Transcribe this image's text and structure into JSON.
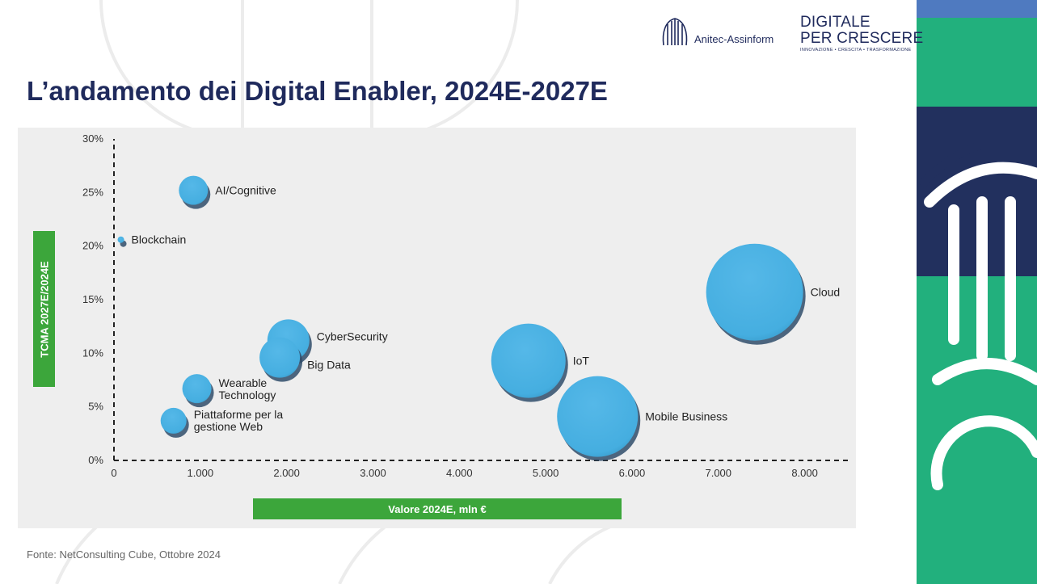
{
  "header": {
    "anitec_name": "Anitec-Assinform",
    "dpc_line1": "DIGITALE",
    "dpc_line2": "PER CRESCERE",
    "dpc_tagline": "INNOVAZIONE • CRESCITA • TRASFORMAZIONE"
  },
  "slide_title": "L’andamento dei Digital Enabler, 2024E-2027E",
  "source_note": "Fonte: NetConsulting Cube, Ottobre 2024",
  "colors": {
    "navy": "#1f2a5c",
    "green": "#3ca63b",
    "bubble": "#45aee0",
    "bubble_shadow": "#2f4c6a",
    "brand_green": "#22b07d",
    "brand_blue": "#4f7ac0"
  },
  "chart_data": {
    "type": "scatter",
    "xlabel": "Valore 2024E, mln €",
    "ylabel": "TCMA 2027E/2024E",
    "xlim": [
      0,
      8500
    ],
    "ylim": [
      0,
      30
    ],
    "xticks": [
      "0",
      "1.000",
      "2.000",
      "3.000",
      "4.000",
      "5.000",
      "6.000",
      "7.000",
      "8.000"
    ],
    "yticks": [
      "0%",
      "5%",
      "10%",
      "15%",
      "20%",
      "25%",
      "30%"
    ],
    "points": [
      {
        "label": "AI/Cognitive",
        "x": 920,
        "y": 25.2,
        "size": 18
      },
      {
        "label": "Blockchain",
        "x": 80,
        "y": 20.6,
        "size": 4
      },
      {
        "label": "CyberSecurity",
        "x": 2020,
        "y": 11.2,
        "size": 26
      },
      {
        "label": "Big Data",
        "x": 1920,
        "y": 9.6,
        "size": 25
      },
      {
        "label": "Wearable Technology",
        "x": 960,
        "y": 6.7,
        "size": 18
      },
      {
        "label": "Piattaforme per la gestione Web",
        "x": 690,
        "y": 3.7,
        "size": 16
      },
      {
        "label": "IoT",
        "x": 4800,
        "y": 9.3,
        "size": 46
      },
      {
        "label": "Mobile Business",
        "x": 5600,
        "y": 4.1,
        "size": 50
      },
      {
        "label": "Cloud",
        "x": 7420,
        "y": 15.7,
        "size": 60
      }
    ]
  }
}
